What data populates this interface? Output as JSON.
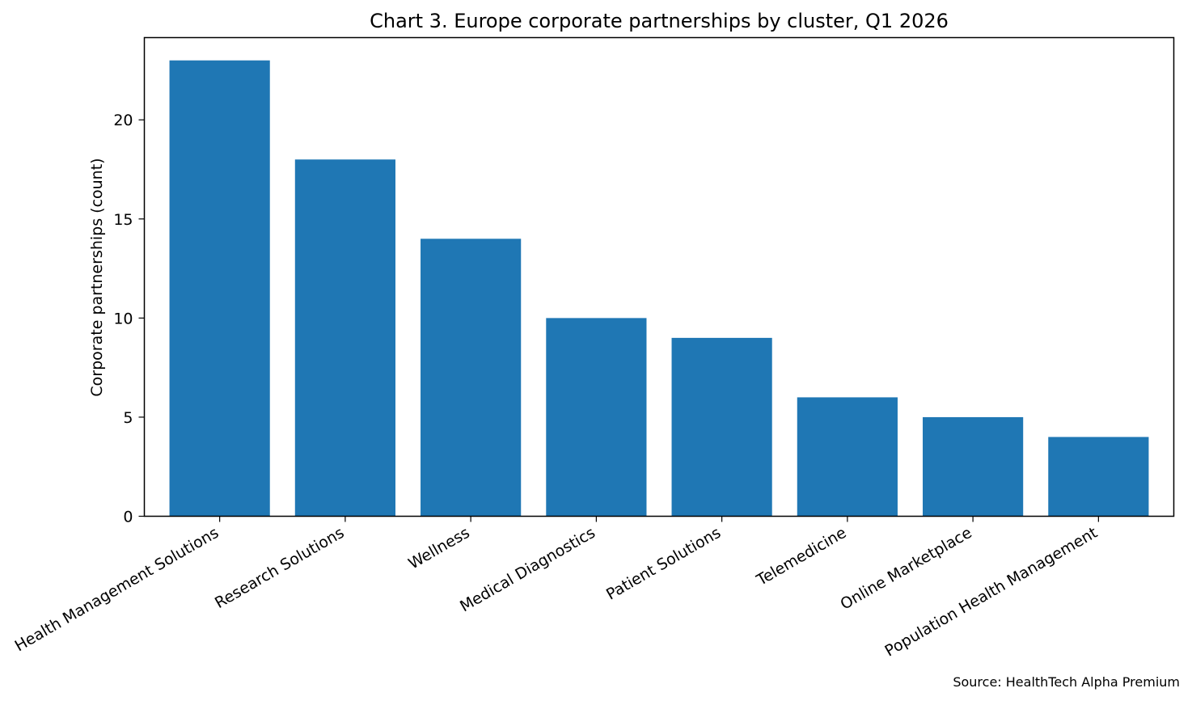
{
  "chart_data": {
    "type": "bar",
    "title": "Chart 3. Europe corporate partnerships by cluster, Q1 2026",
    "xlabel": "",
    "ylabel": "Corporate partnerships (count)",
    "categories": [
      "Health Management Solutions",
      "Research Solutions",
      "Wellness",
      "Medical Diagnostics",
      "Patient Solutions",
      "Telemedicine",
      "Online Marketplace",
      "Population Health Management"
    ],
    "values": [
      23,
      18,
      14,
      10,
      9,
      6,
      5,
      4
    ],
    "ylim": [
      0,
      24.15
    ],
    "yticks": [
      0,
      5,
      10,
      15,
      20
    ],
    "grid": false,
    "legend": "none",
    "bar_color": "#1f77b4",
    "source": "Source: HealthTech Alpha Premium"
  }
}
